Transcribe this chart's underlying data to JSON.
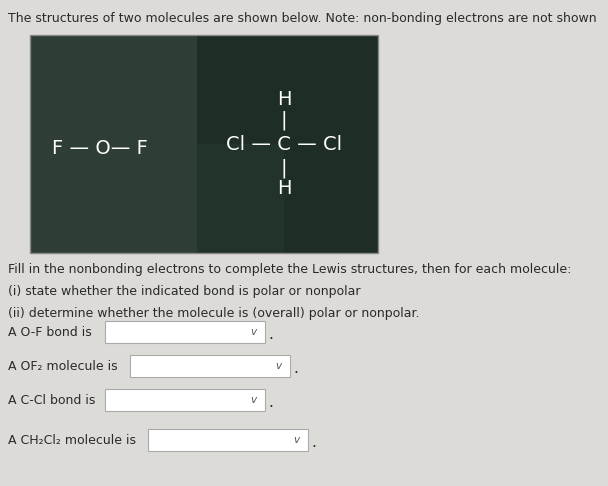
{
  "title": "The structures of two molecules are shown below. Note: non-bonding electrons are not shown",
  "bg_color": "#e8e6e3",
  "box_dark_left": "#2e3d35",
  "box_dark_right": "#1e2d25",
  "box_shadow": "#3a4a40",
  "instruction1": "Fill in the nonbonding electrons to complete the Lewis structures, then for each molecule:",
  "instruction2": "(i) state whether the indicated bond is polar or nonpolar",
  "instruction3": "(ii) determine whether the molecule is (overall) polar or nonpolar.",
  "label1": "A O-F bond is",
  "label2": "A OF₂ molecule is",
  "label3": "A C-Cl bond is",
  "label4": "A CH₂Cl₂ molecule is",
  "white": "#ffffff",
  "text_color": "#2a2a2a",
  "light_gray": "#dddbd8"
}
